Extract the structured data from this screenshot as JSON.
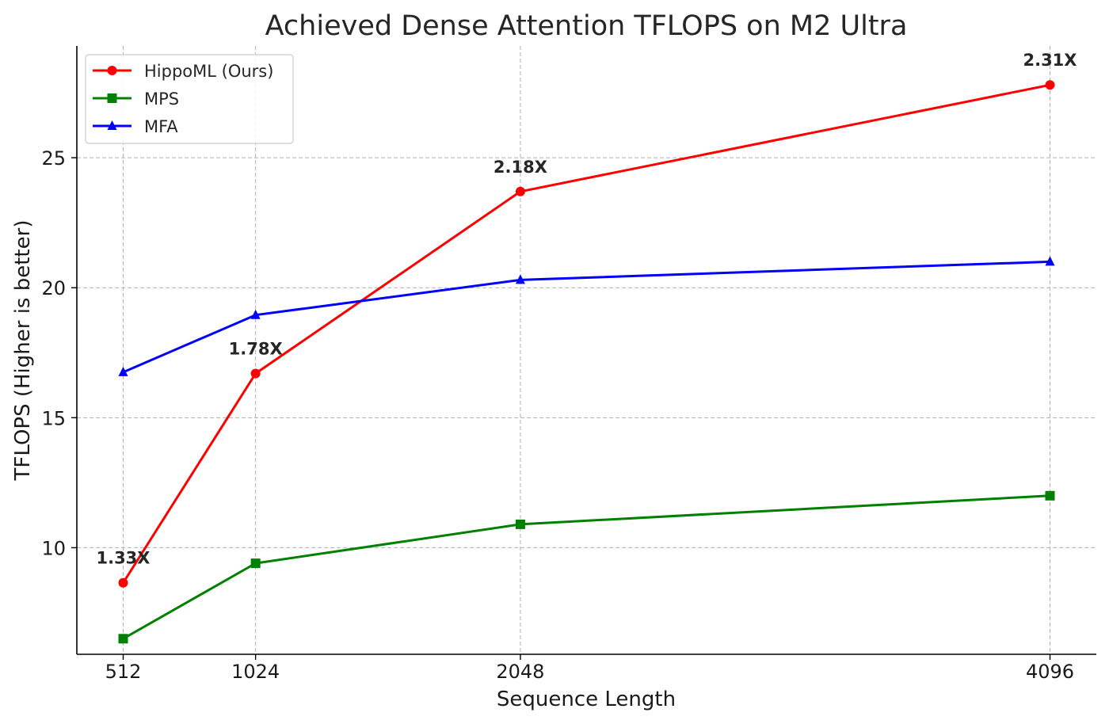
{
  "chart_data": {
    "type": "line",
    "title": "Achieved Dense Attention TFLOPS on M2 Ultra",
    "xlabel": "Sequence Length",
    "ylabel": "TFLOPS (Higher is better)",
    "x": [
      512,
      1024,
      2048,
      4096
    ],
    "x_tick_labels": [
      "512",
      "1024",
      "2048",
      "4096"
    ],
    "y_ticks": [
      10,
      15,
      20,
      25
    ],
    "y_tick_labels": [
      "10",
      "15",
      "20",
      "25"
    ],
    "ylim": [
      5.9,
      29.3
    ],
    "grid": true,
    "legend_position": "top-left",
    "series": [
      {
        "name": "HippoML (Ours)",
        "color": "#ff0000",
        "marker": "circle",
        "values": [
          8.65,
          16.7,
          23.7,
          27.8
        ]
      },
      {
        "name": "MPS",
        "color": "#008000",
        "marker": "square",
        "values": [
          6.5,
          9.4,
          10.9,
          12.0
        ]
      },
      {
        "name": "MFA",
        "color": "#0000ff",
        "marker": "triangle",
        "values": [
          16.75,
          18.95,
          20.3,
          21.0
        ]
      }
    ],
    "annotations": [
      {
        "text": "1.33X",
        "x": 512,
        "y": 8.65
      },
      {
        "text": "1.78X",
        "x": 1024,
        "y": 16.7
      },
      {
        "text": "2.18X",
        "x": 2048,
        "y": 23.7
      },
      {
        "text": "2.31X",
        "x": 4096,
        "y": 27.8
      }
    ]
  }
}
